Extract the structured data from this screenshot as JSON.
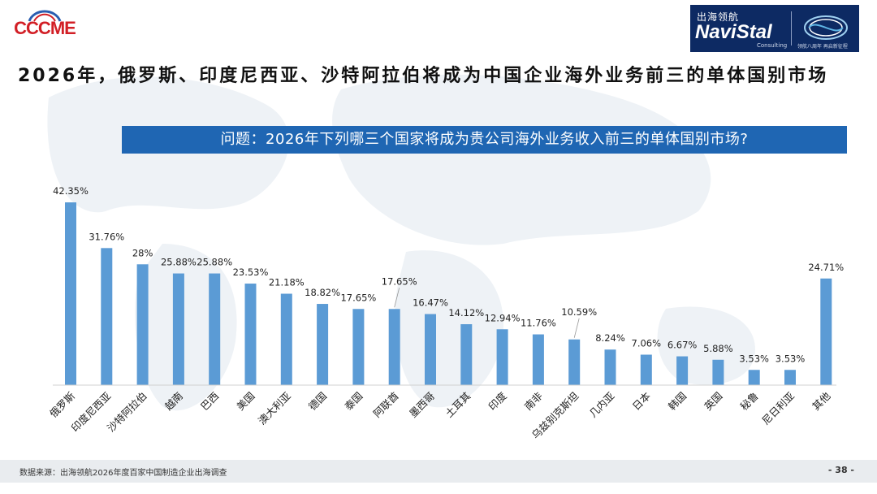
{
  "logos": {
    "left_brand": "CCCME",
    "right_brand_cn": "出海领航",
    "right_brand_en": "NaviStal",
    "right_brand_sub": "Consulting",
    "right_brand_tag": "领航八周年 再启新征程"
  },
  "title": "2026年，俄罗斯、印度尼西亚、沙特阿拉伯将成为中国企业海外业务前三的单体国别市场",
  "question": "问题：2026年下列哪三个国家将成为贵公司海外业务收入前三的单体国别市场?",
  "chart_data": {
    "type": "bar",
    "categories": [
      "俄罗斯",
      "印度尼西亚",
      "沙特阿拉伯",
      "越南",
      "巴西",
      "美国",
      "澳大利亚",
      "德国",
      "泰国",
      "阿联酋",
      "墨西哥",
      "土耳其",
      "印度",
      "南非",
      "乌兹别克斯坦",
      "几内亚",
      "日本",
      "韩国",
      "英国",
      "秘鲁",
      "尼日利亚",
      "其他"
    ],
    "values": [
      42.35,
      31.76,
      28,
      25.88,
      25.88,
      23.53,
      21.18,
      18.82,
      17.65,
      17.65,
      16.47,
      14.12,
      12.94,
      11.76,
      10.59,
      8.24,
      7.06,
      6.67,
      5.88,
      3.53,
      3.53,
      24.71
    ],
    "labels": [
      "42.35%",
      "31.76%",
      "28%",
      "25.88%",
      "25.88%",
      "23.53%",
      "21.18%",
      "18.82%",
      "17.65%",
      "17.65%",
      "16.47%",
      "14.12%",
      "12.94%",
      "11.76%",
      "10.59%",
      "8.24%",
      "7.06%",
      "6.67%",
      "5.88%",
      "3.53%",
      "3.53%",
      "24.71%"
    ],
    "ylim": [
      0,
      45
    ],
    "grid": false,
    "bar_color": "#5b9bd5"
  },
  "footer": {
    "source": "数据来源：出海领航2026年度百家中国制造企业出海调查",
    "page": "- 38 -"
  }
}
